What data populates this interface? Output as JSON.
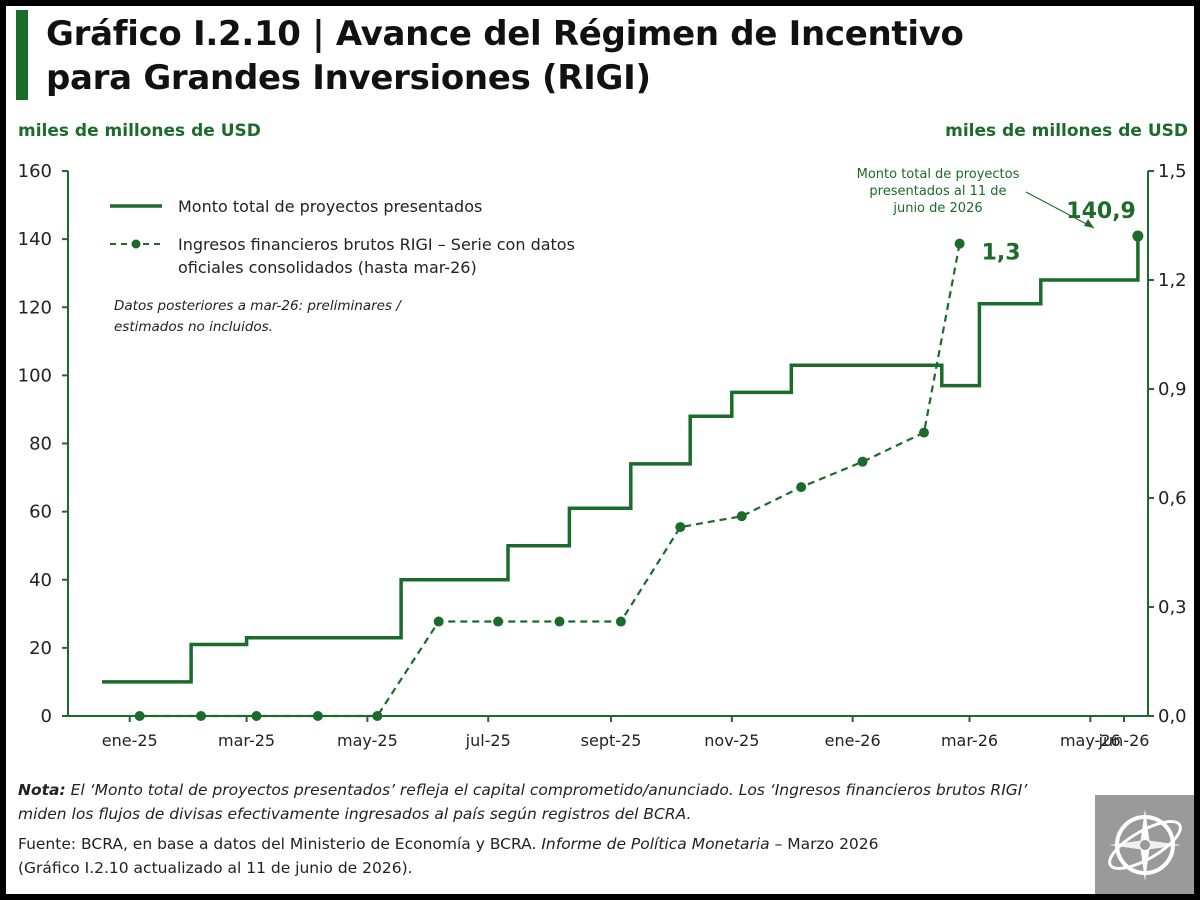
{
  "title": {
    "line1": "Gráfico I.2.10 | Avance del Régimen de Incentivo",
    "line2": "para Grandes Inversiones (RIGI)"
  },
  "colors": {
    "accent": "#1b6b2a",
    "text": "#222222",
    "axis": "#1b6b2a"
  },
  "chart_data": {
    "type": "line",
    "left_axis_unit": "miles de millones de USD",
    "right_axis_unit": "miles de millones de USD",
    "x_tick_labels": [
      "ene-25",
      "mar-25",
      "may-25",
      "jul-25",
      "sept-25",
      "nov-25",
      "ene-26",
      "mar-26",
      "may-26",
      "jun-26"
    ],
    "left_yticks": [
      "0",
      "20",
      "40",
      "60",
      "80",
      "100",
      "120",
      "140",
      "160"
    ],
    "right_yticks": [
      "0,0",
      "0,3",
      "0,6",
      "0,9",
      "1,2",
      "1,5"
    ],
    "ylim_left": [
      0,
      160
    ],
    "ylim_right": [
      0,
      1.5
    ],
    "legend_placement": "top-left",
    "grid": false,
    "series": [
      {
        "name": "Monto total de proyectos presentados",
        "axis": "left",
        "style": "step",
        "points": [
          {
            "x": "2025-01-01",
            "y": 10
          },
          {
            "x": "2025-02-15",
            "y": 10
          },
          {
            "x": "2025-02-15",
            "y": 21
          },
          {
            "x": "2025-03-15",
            "y": 21
          },
          {
            "x": "2025-03-15",
            "y": 23
          },
          {
            "x": "2025-06-01",
            "y": 23
          },
          {
            "x": "2025-06-01",
            "y": 40
          },
          {
            "x": "2025-07-25",
            "y": 40
          },
          {
            "x": "2025-07-25",
            "y": 50
          },
          {
            "x": "2025-08-25",
            "y": 50
          },
          {
            "x": "2025-08-25",
            "y": 61
          },
          {
            "x": "2025-09-25",
            "y": 61
          },
          {
            "x": "2025-09-25",
            "y": 74
          },
          {
            "x": "2025-10-25",
            "y": 74
          },
          {
            "x": "2025-10-25",
            "y": 88
          },
          {
            "x": "2025-11-15",
            "y": 88
          },
          {
            "x": "2025-11-15",
            "y": 95
          },
          {
            "x": "2025-12-15",
            "y": 95
          },
          {
            "x": "2025-12-15",
            "y": 103
          },
          {
            "x": "2026-03-01",
            "y": 103
          },
          {
            "x": "2026-03-01",
            "y": 97
          },
          {
            "x": "2026-03-20",
            "y": 97
          },
          {
            "x": "2026-03-20",
            "y": 121
          },
          {
            "x": "2026-04-20",
            "y": 121
          },
          {
            "x": "2026-04-20",
            "y": 128
          },
          {
            "x": "2026-06-08",
            "y": 128
          },
          {
            "x": "2026-06-08",
            "y": 140.9
          }
        ],
        "end_label": "140,9"
      },
      {
        "name": "Ingresos financieros brutos RIGI – Serie con datos oficiales consolidados (hasta mar-26)",
        "axis": "right",
        "style": "dashed-markers",
        "points": [
          {
            "x": "2025-01-20",
            "y": 0.0
          },
          {
            "x": "2025-02-20",
            "y": 0.0
          },
          {
            "x": "2025-03-20",
            "y": 0.0
          },
          {
            "x": "2025-04-20",
            "y": 0.0
          },
          {
            "x": "2025-05-20",
            "y": 0.0
          },
          {
            "x": "2025-06-20",
            "y": 0.26
          },
          {
            "x": "2025-07-20",
            "y": 0.26
          },
          {
            "x": "2025-08-20",
            "y": 0.26
          },
          {
            "x": "2025-09-20",
            "y": 0.26
          },
          {
            "x": "2025-10-20",
            "y": 0.52
          },
          {
            "x": "2025-11-20",
            "y": 0.55
          },
          {
            "x": "2025-12-20",
            "y": 0.63
          },
          {
            "x": "2026-01-20",
            "y": 0.7
          },
          {
            "x": "2026-02-20",
            "y": 0.78
          },
          {
            "x": "2026-03-10",
            "y": 1.3
          }
        ],
        "end_label": "1,3"
      }
    ],
    "legend": [
      {
        "line1": "Monto total de proyectos presentados",
        "line2": ""
      },
      {
        "line1": "Ingresos financieros brutos RIGI – Serie con datos",
        "line2": "oficiales consolidados (hasta mar-26)"
      }
    ],
    "legend_note": [
      "Datos posteriores a mar-26: preliminares /",
      "estimados no incluidos."
    ],
    "annotation": [
      "Monto total de proyectos",
      "presentados al 11 de",
      "junio de 2026"
    ]
  },
  "footer": {
    "nota_label": "Nota:",
    "nota_text": " El ‘Monto total de proyectos presentados’ refleja el capital comprometido/anunciado. Los ‘Ingresos financieros brutos RIGI’ miden los flujos de divisas efectivamente ingresados al país según registros del BCRA.",
    "fuente_prefix": "Fuente: BCRA, en base a datos del Ministerio de Economía y BCRA. ",
    "fuente_italic": "Informe de Política Monetaria",
    "fuente_suffix": " – Marzo 2026",
    "fuente_line2": "(Gráfico I.2.10 actualizado al 11 de junio de 2026)."
  },
  "logo_icon": "compass-globe-icon"
}
